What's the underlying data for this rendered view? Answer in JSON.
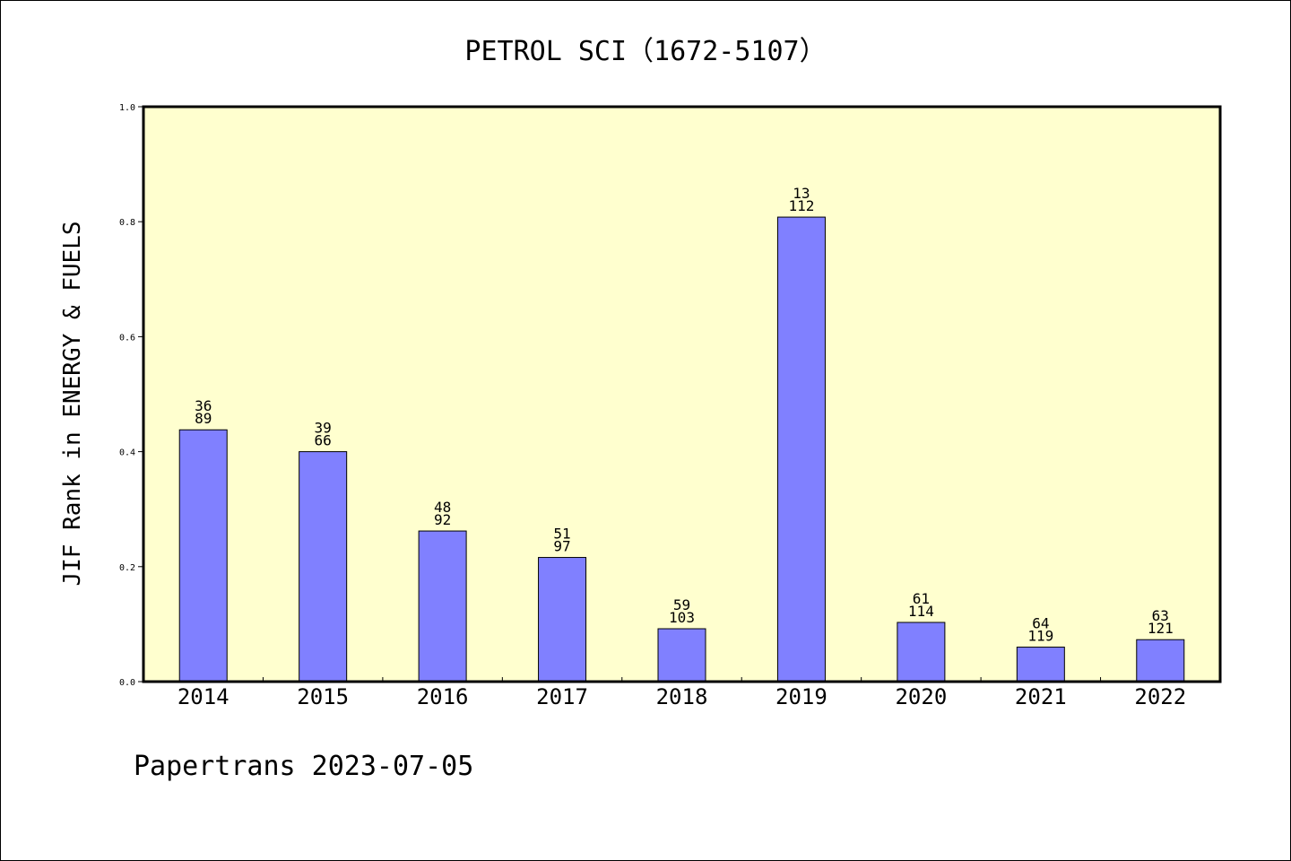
{
  "chart_data": {
    "type": "bar",
    "title": "PETROL SCI（1672-5107）",
    "ylabel": "JIF Rank in ENERGY & FUELS",
    "xlabel": "",
    "ylim": [
      0,
      1.0
    ],
    "yticks": [
      "0.0",
      "0.2",
      "0.4",
      "0.6",
      "0.8",
      "1.0"
    ],
    "ytick_values": [
      0.0,
      0.2,
      0.4,
      0.6,
      0.8,
      1.0
    ],
    "categories": [
      "2014",
      "2015",
      "2016",
      "2017",
      "2018",
      "2019",
      "2020",
      "2021",
      "2022"
    ],
    "values": [
      0.438,
      0.4,
      0.262,
      0.216,
      0.092,
      0.808,
      0.103,
      0.06,
      0.073
    ],
    "rank": [
      "36",
      "39",
      "48",
      "51",
      "59",
      "13",
      "61",
      "64",
      "63"
    ],
    "total": [
      "89",
      "66",
      "92",
      "97",
      "103",
      "112",
      "114",
      "119",
      "121"
    ],
    "grid": false,
    "colors": {
      "plot_background": "#ffffcf",
      "bar_fill": "#8080ff",
      "bar_stroke": "#000000"
    }
  },
  "footer": {
    "text": "Papertrans 2023-07-05"
  }
}
